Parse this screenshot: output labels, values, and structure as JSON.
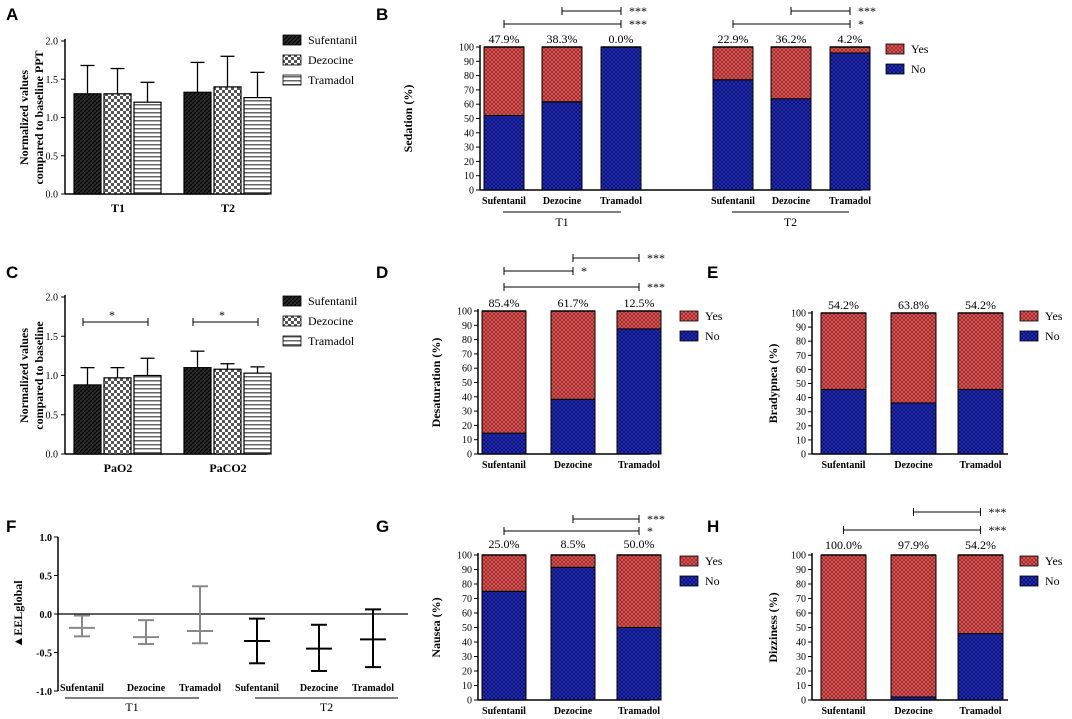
{
  "colors": {
    "yes": "#e05a5a",
    "no": "#2430c8",
    "sufentanil": "#2a2a2a",
    "dezocine": "#888888",
    "tramadol": "#cccccc",
    "ink": "#000000",
    "eel": "#888888"
  },
  "chart_data": [
    {
      "id": "A",
      "panel_label": "A",
      "type": "bar",
      "ylabel": [
        "Normalized values",
        "compared to baseline PPT"
      ],
      "ylim": [
        0,
        2
      ],
      "yticks": [
        "0.0",
        "0.5",
        "1.0",
        "1.5",
        "2.0"
      ],
      "groups": [
        "T1",
        "T2"
      ],
      "legend": [
        "Sufentanil",
        "Dezocine",
        "Tramadol"
      ],
      "series": [
        {
          "name": "Sufentanil",
          "values": [
            1.31,
            1.33
          ],
          "err": [
            0.37,
            0.39
          ]
        },
        {
          "name": "Dezocine",
          "values": [
            1.31,
            1.4
          ],
          "err": [
            0.33,
            0.4
          ]
        },
        {
          "name": "Tramadol",
          "values": [
            1.2,
            1.26
          ],
          "err": [
            0.26,
            0.33
          ]
        }
      ]
    },
    {
      "id": "B",
      "panel_label": "B",
      "type": "stacked-bar",
      "ylabel": "Sedation (%)",
      "yticks": [
        "0",
        "10",
        "20",
        "30",
        "40",
        "50",
        "60",
        "70",
        "80",
        "90",
        "100"
      ],
      "categories": [
        "Sufentanil",
        "Dezocine",
        "Tramadol",
        "Sufentanil",
        "Dezocine",
        "Tramadol"
      ],
      "groups": [
        "T1",
        "T2"
      ],
      "legend": [
        "Yes",
        "No"
      ],
      "yes": [
        47.9,
        38.3,
        0.0,
        22.9,
        36.2,
        4.2
      ],
      "labels": [
        "47.9%",
        "38.3%",
        "0.0%",
        "22.9%",
        "36.2%",
        "4.2%"
      ],
      "sig": [
        {
          "from": 1,
          "to": 2,
          "text": "***"
        },
        {
          "from": 0,
          "to": 2,
          "text": "***"
        },
        {
          "from": 4,
          "to": 5,
          "text": "***"
        },
        {
          "from": 3,
          "to": 5,
          "text": "*"
        }
      ]
    },
    {
      "id": "C",
      "panel_label": "C",
      "type": "bar",
      "ylabel": [
        "Normalized values",
        "compared to baseline"
      ],
      "ylim": [
        0,
        2
      ],
      "yticks": [
        "0.0",
        "0.5",
        "1.0",
        "1.5",
        "2.0"
      ],
      "groups": [
        "PaO2",
        "PaCO2"
      ],
      "legend": [
        "Sufentanil",
        "Dezocine",
        "Tramadol"
      ],
      "series": [
        {
          "name": "Sufentanil",
          "values": [
            0.88,
            1.1
          ],
          "err": [
            0.22,
            0.21
          ]
        },
        {
          "name": "Dezocine",
          "values": [
            0.97,
            1.08
          ],
          "err": [
            0.13,
            0.07
          ]
        },
        {
          "name": "Tramadol",
          "values": [
            1.0,
            1.03
          ],
          "err": [
            0.22,
            0.08
          ]
        }
      ],
      "sig": [
        {
          "group": 0,
          "text": "*"
        },
        {
          "group": 1,
          "text": "*"
        }
      ]
    },
    {
      "id": "D",
      "panel_label": "D",
      "type": "stacked-bar",
      "ylabel": "Desaturation (%)",
      "yticks": [
        "0",
        "10",
        "20",
        "30",
        "40",
        "50",
        "60",
        "70",
        "80",
        "90",
        "100"
      ],
      "categories": [
        "Sufentanil",
        "Dezocine",
        "Tramadol"
      ],
      "legend": [
        "Yes",
        "No"
      ],
      "yes": [
        85.4,
        61.7,
        12.5
      ],
      "labels": [
        "85.4%",
        "61.7%",
        "12.5%"
      ],
      "sig": [
        {
          "from": 1,
          "to": 2,
          "text": "***"
        },
        {
          "from": 0,
          "to": 1,
          "text": "*"
        },
        {
          "from": 0,
          "to": 2,
          "text": "***"
        }
      ]
    },
    {
      "id": "E",
      "panel_label": "E",
      "type": "stacked-bar",
      "ylabel": "Bradypnea (%)",
      "yticks": [
        "0",
        "10",
        "20",
        "30",
        "40",
        "50",
        "60",
        "70",
        "80",
        "90",
        "100"
      ],
      "categories": [
        "Sufentanil",
        "Dezocine",
        "Tramadol"
      ],
      "legend": [
        "Yes",
        "No"
      ],
      "yes": [
        54.2,
        63.8,
        54.2
      ],
      "labels": [
        "54.2%",
        "63.8%",
        "54.2%"
      ],
      "sig": []
    },
    {
      "id": "F",
      "panel_label": "F",
      "type": "error-bar",
      "ylabel": "▲EELglobal",
      "ylim": [
        -1,
        1
      ],
      "yticks": [
        "1.0",
        "0.5",
        "0.0",
        "-0.5",
        "-1.0"
      ],
      "categories": [
        "Sufentanil",
        "Dezocine",
        "Tramadol",
        "Sufentanil",
        "Dezocine",
        "Tramadol"
      ],
      "groups": [
        "T1",
        "T2"
      ],
      "mean": [
        -0.18,
        -0.3,
        -0.22,
        -0.35,
        -0.45,
        -0.33
      ],
      "low": [
        -0.29,
        -0.39,
        -0.38,
        -0.64,
        -0.74,
        -0.69
      ],
      "high": [
        -0.02,
        -0.08,
        0.36,
        -0.06,
        -0.14,
        0.06
      ]
    },
    {
      "id": "G",
      "panel_label": "G",
      "type": "stacked-bar",
      "ylabel": "Nausea (%)",
      "yticks": [
        "0",
        "10",
        "20",
        "30",
        "40",
        "50",
        "60",
        "70",
        "80",
        "90",
        "100"
      ],
      "categories": [
        "Sufentanil",
        "Dezocine",
        "Tramadol"
      ],
      "legend": [
        "Yes",
        "No"
      ],
      "yes": [
        25.0,
        8.5,
        50.0
      ],
      "labels": [
        "25.0%",
        "8.5%",
        "50.0%"
      ],
      "sig": [
        {
          "from": 1,
          "to": 2,
          "text": "***"
        },
        {
          "from": 0,
          "to": 2,
          "text": "*"
        }
      ]
    },
    {
      "id": "H",
      "panel_label": "H",
      "type": "stacked-bar",
      "ylabel": "Dizziness (%)",
      "yticks": [
        "0",
        "10",
        "20",
        "30",
        "40",
        "50",
        "60",
        "70",
        "80",
        "90",
        "100"
      ],
      "categories": [
        "Sufentanil",
        "Dezocine",
        "Tramadol"
      ],
      "legend": [
        "Yes",
        "No"
      ],
      "yes": [
        100.0,
        97.9,
        54.2
      ],
      "labels": [
        "100.0%",
        "97.9%",
        "54.2%"
      ],
      "sig": [
        {
          "from": 1,
          "to": 2,
          "text": "***"
        },
        {
          "from": 0,
          "to": 2,
          "text": "***"
        }
      ]
    }
  ]
}
